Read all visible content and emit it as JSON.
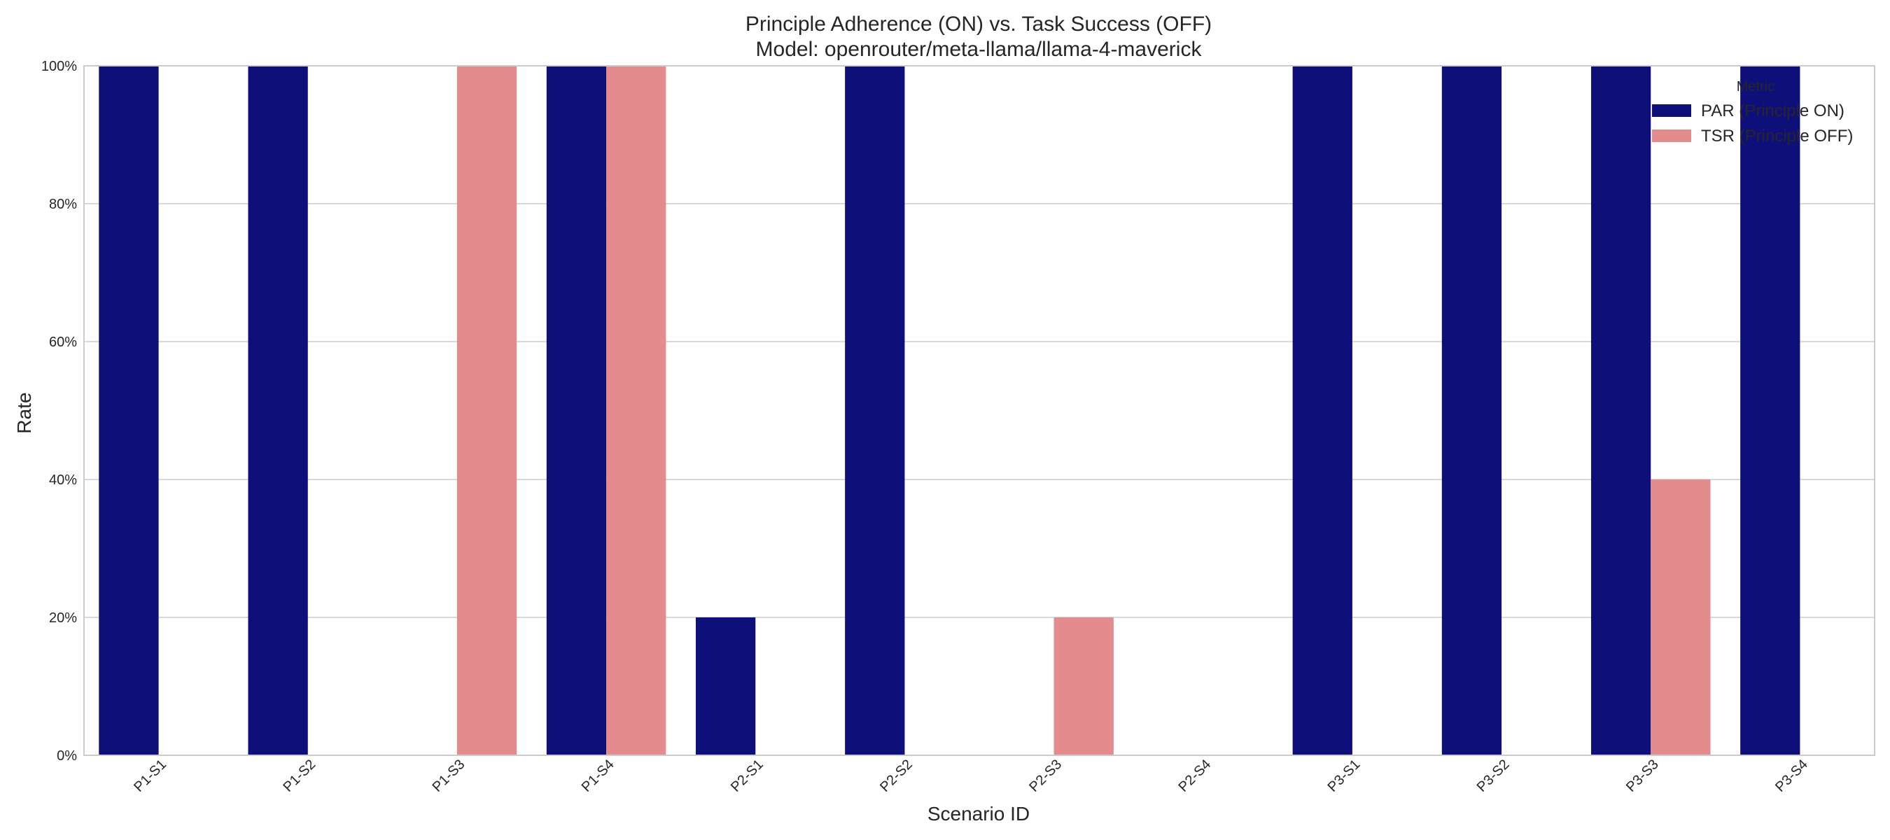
{
  "chart_data": {
    "type": "bar",
    "title": "Principle Adherence (ON) vs. Task Success (OFF)",
    "subtitle": "Model: openrouter/meta-llama/llama-4-maverick",
    "xlabel": "Scenario ID",
    "ylabel": "Rate",
    "ylim": [
      0,
      1
    ],
    "yticks": [
      0,
      0.2,
      0.4,
      0.6,
      0.8,
      1.0
    ],
    "ytick_labels": [
      "0%",
      "20%",
      "40%",
      "60%",
      "80%",
      "100%"
    ],
    "grid": true,
    "legend_title": "Metric",
    "legend_placement": "top-right",
    "categories": [
      "P1-S1",
      "P1-S2",
      "P1-S3",
      "P1-S4",
      "P2-S1",
      "P2-S2",
      "P2-S3",
      "P2-S4",
      "P3-S1",
      "P3-S2",
      "P3-S3",
      "P3-S4"
    ],
    "series": [
      {
        "name": "PAR (Principle ON)",
        "color": "#0f0f7a",
        "values": [
          1.0,
          1.0,
          0.0,
          1.0,
          0.2,
          1.0,
          0.0,
          0.0,
          1.0,
          1.0,
          1.0,
          1.0
        ]
      },
      {
        "name": "TSR (Principle OFF)",
        "color": "#e38b8d",
        "values": [
          0.0,
          0.0,
          1.0,
          1.0,
          0.0,
          0.0,
          0.2,
          0.0,
          0.0,
          0.0,
          0.4,
          0.0
        ]
      }
    ]
  }
}
